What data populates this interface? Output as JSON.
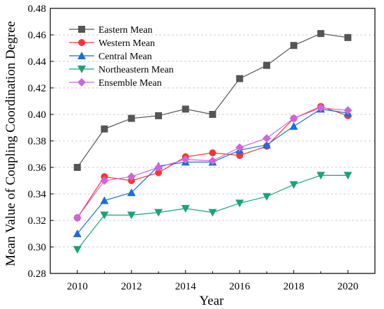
{
  "chart_data": {
    "type": "line",
    "title": "",
    "xlabel": "Year",
    "ylabel": "Mean Value of Coupling Coordination Degree",
    "x": [
      2010,
      2011,
      2012,
      2013,
      2014,
      2015,
      2016,
      2017,
      2018,
      2019,
      2020
    ],
    "x_ticks": [
      "2010",
      "2012",
      "2014",
      "2016",
      "2018",
      "2020"
    ],
    "y_ticks": [
      "0.28",
      "0.30",
      "0.32",
      "0.34",
      "0.36",
      "0.38",
      "0.40",
      "0.42",
      "0.44",
      "0.46",
      "0.48"
    ],
    "xlim": [
      2009,
      2021
    ],
    "ylim": [
      0.28,
      0.48
    ],
    "grid": "horizontal dashed",
    "legend_position": "top-left",
    "series": [
      {
        "name": "Eastern Mean",
        "color": "#555555",
        "marker": "square",
        "values": [
          0.36,
          0.389,
          0.397,
          0.399,
          0.404,
          0.4,
          0.427,
          0.437,
          0.452,
          0.461,
          0.458
        ]
      },
      {
        "name": "Western Mean",
        "color": "#ff3333",
        "marker": "circle",
        "values": [
          0.322,
          0.353,
          0.35,
          0.356,
          0.368,
          0.371,
          0.369,
          0.376,
          0.397,
          0.406,
          0.399
        ]
      },
      {
        "name": "Central Mean",
        "color": "#1a6fd6",
        "marker": "triangle-up",
        "values": [
          0.31,
          0.335,
          0.341,
          0.361,
          0.364,
          0.364,
          0.373,
          0.377,
          0.391,
          0.404,
          0.401
        ]
      },
      {
        "name": "Northeastern Mean",
        "color": "#1aa37a",
        "marker": "triangle-down",
        "values": [
          0.298,
          0.324,
          0.324,
          0.326,
          0.329,
          0.326,
          0.333,
          0.338,
          0.347,
          0.354,
          0.354
        ]
      },
      {
        "name": "Ensemble Mean",
        "color": "#cc66dd",
        "marker": "diamond",
        "values": [
          0.322,
          0.35,
          0.353,
          0.36,
          0.366,
          0.365,
          0.375,
          0.382,
          0.397,
          0.405,
          0.403
        ]
      }
    ]
  }
}
